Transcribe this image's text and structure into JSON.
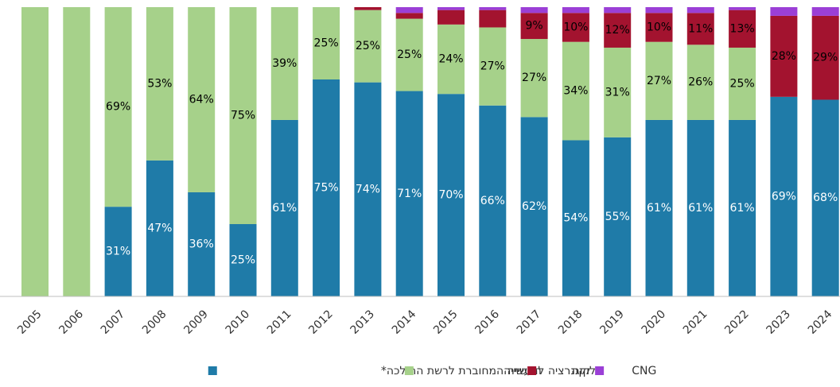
{
  "chart_data": {
    "type": "stacked_bar",
    "categories": [
      "2005",
      "2006",
      "2007",
      "2008",
      "2009",
      "2010",
      "2011",
      "2012",
      "2013",
      "2014",
      "2015",
      "2016",
      "2017",
      "2018",
      "2019",
      "2020",
      "2021",
      "2022",
      "2023",
      "2024"
    ],
    "ylim": [
      0,
      100
    ],
    "series": [
      {
        "name": "תעשייה המחוברת לרשת ההולכה*",
        "color": "#1f7ba8",
        "values": [
          0,
          0,
          31,
          47,
          36,
          25,
          61,
          75,
          74,
          71,
          70,
          66,
          62,
          54,
          55,
          61,
          61,
          61,
          69,
          68
        ],
        "value_labels": [
          null,
          null,
          "31%",
          "47%",
          "36%",
          "25%",
          "61%",
          "75%",
          "74%",
          "71%",
          "70%",
          "66%",
          "62%",
          "54%",
          "55%",
          "61%",
          "61%",
          "61%",
          "69%",
          "68%"
        ]
      },
      {
        "name": "קוגנרציה לתעשייה",
        "color": "#a6d18a",
        "values": [
          100,
          100,
          69,
          53,
          64,
          75,
          39,
          25,
          25,
          25,
          24,
          27,
          27,
          34,
          31,
          27,
          26,
          25,
          0,
          0
        ],
        "value_labels": [
          null,
          null,
          "69%",
          "53%",
          "64%",
          "75%",
          "39%",
          "25%",
          "25%",
          "25%",
          "24%",
          "27%",
          "27%",
          "34%",
          "31%",
          "27%",
          "26%",
          "25%",
          null,
          null
        ]
      },
      {
        "name": "חלוקה",
        "color": "#a3132f",
        "values": [
          0,
          0,
          0,
          0,
          0,
          0,
          0,
          0,
          1,
          2,
          5,
          6,
          9,
          10,
          12,
          10,
          11,
          13,
          28,
          29
        ],
        "value_labels": [
          null,
          null,
          null,
          null,
          null,
          null,
          null,
          null,
          null,
          null,
          null,
          null,
          "9%",
          "10%",
          "12%",
          "10%",
          "11%",
          "13%",
          "28%",
          "29%"
        ]
      },
      {
        "name": "CNG",
        "color": "#9b3fd6",
        "values": [
          0,
          0,
          0,
          0,
          0,
          0,
          0,
          0,
          0,
          2,
          1,
          1,
          2,
          2,
          2,
          2,
          2,
          1,
          3,
          3
        ],
        "value_labels": [
          null,
          null,
          null,
          null,
          null,
          null,
          null,
          null,
          null,
          null,
          null,
          null,
          null,
          null,
          null,
          null,
          null,
          null,
          null,
          null
        ]
      }
    ]
  }
}
